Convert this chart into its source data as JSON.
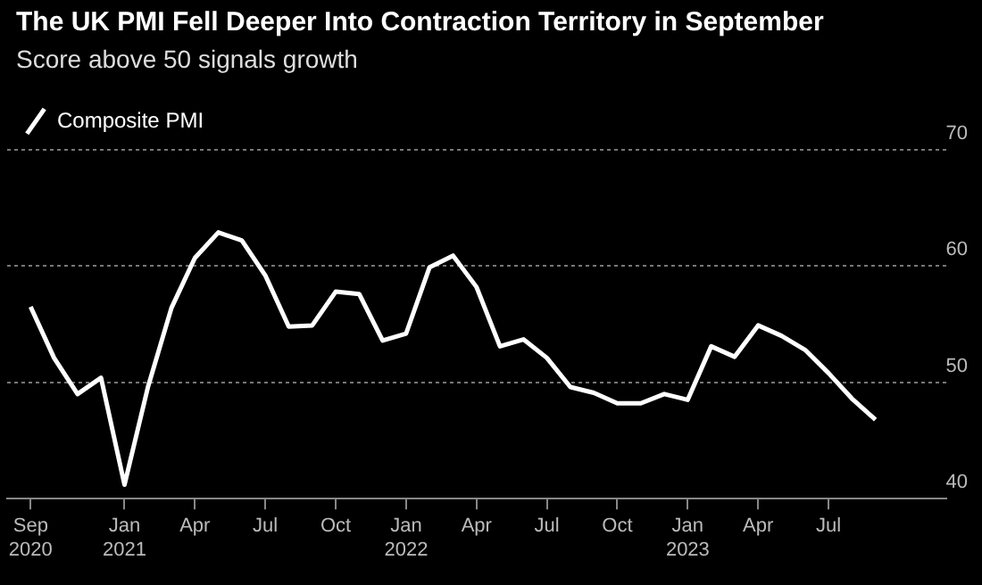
{
  "chart_data": {
    "type": "line",
    "title": "The UK PMI Fell Deeper Into Contraction Territory in September",
    "subtitle": "Score above 50 signals growth",
    "x": [
      "2020-09",
      "2020-10",
      "2020-11",
      "2020-12",
      "2021-01",
      "2021-02",
      "2021-03",
      "2021-04",
      "2021-05",
      "2021-06",
      "2021-07",
      "2021-08",
      "2021-09",
      "2021-10",
      "2021-11",
      "2021-12",
      "2022-01",
      "2022-02",
      "2022-03",
      "2022-04",
      "2022-05",
      "2022-06",
      "2022-07",
      "2022-08",
      "2022-09",
      "2022-10",
      "2022-11",
      "2022-12",
      "2023-01",
      "2023-02",
      "2023-03",
      "2023-04",
      "2023-05",
      "2023-06",
      "2023-07",
      "2023-08",
      "2023-09"
    ],
    "series": [
      {
        "name": "Composite PMI",
        "color": "#ffffff",
        "values": [
          56.5,
          52.1,
          49.0,
          50.4,
          41.2,
          49.6,
          56.4,
          60.7,
          62.9,
          62.2,
          59.2,
          54.8,
          54.9,
          57.8,
          57.6,
          53.6,
          54.2,
          59.9,
          60.9,
          58.2,
          53.1,
          53.7,
          52.1,
          49.6,
          49.1,
          48.2,
          48.2,
          49.0,
          48.5,
          53.1,
          52.2,
          54.9,
          54.0,
          52.8,
          50.8,
          48.6,
          46.8
        ]
      }
    ],
    "xlim": [
      "2020-08",
      "2023-12"
    ],
    "xticks": [
      {
        "value": "2020-09",
        "label": "Sep 2020"
      },
      {
        "value": "2021-01",
        "label": "Jan 2021"
      },
      {
        "value": "2021-04",
        "label": "Apr"
      },
      {
        "value": "2021-07",
        "label": "Jul"
      },
      {
        "value": "2021-10",
        "label": "Oct"
      },
      {
        "value": "2022-01",
        "label": "Jan 2022"
      },
      {
        "value": "2022-04",
        "label": "Apr"
      },
      {
        "value": "2022-07",
        "label": "Jul"
      },
      {
        "value": "2022-10",
        "label": "Oct"
      },
      {
        "value": "2023-01",
        "label": "Jan 2023"
      },
      {
        "value": "2023-04",
        "label": "Apr"
      },
      {
        "value": "2023-07",
        "label": "Jul"
      }
    ],
    "ylim": [
      40,
      70
    ],
    "yticks": [
      40,
      50,
      60,
      70
    ],
    "grid": "y",
    "legend": "top left",
    "marker": "none",
    "line_style": "solid"
  }
}
